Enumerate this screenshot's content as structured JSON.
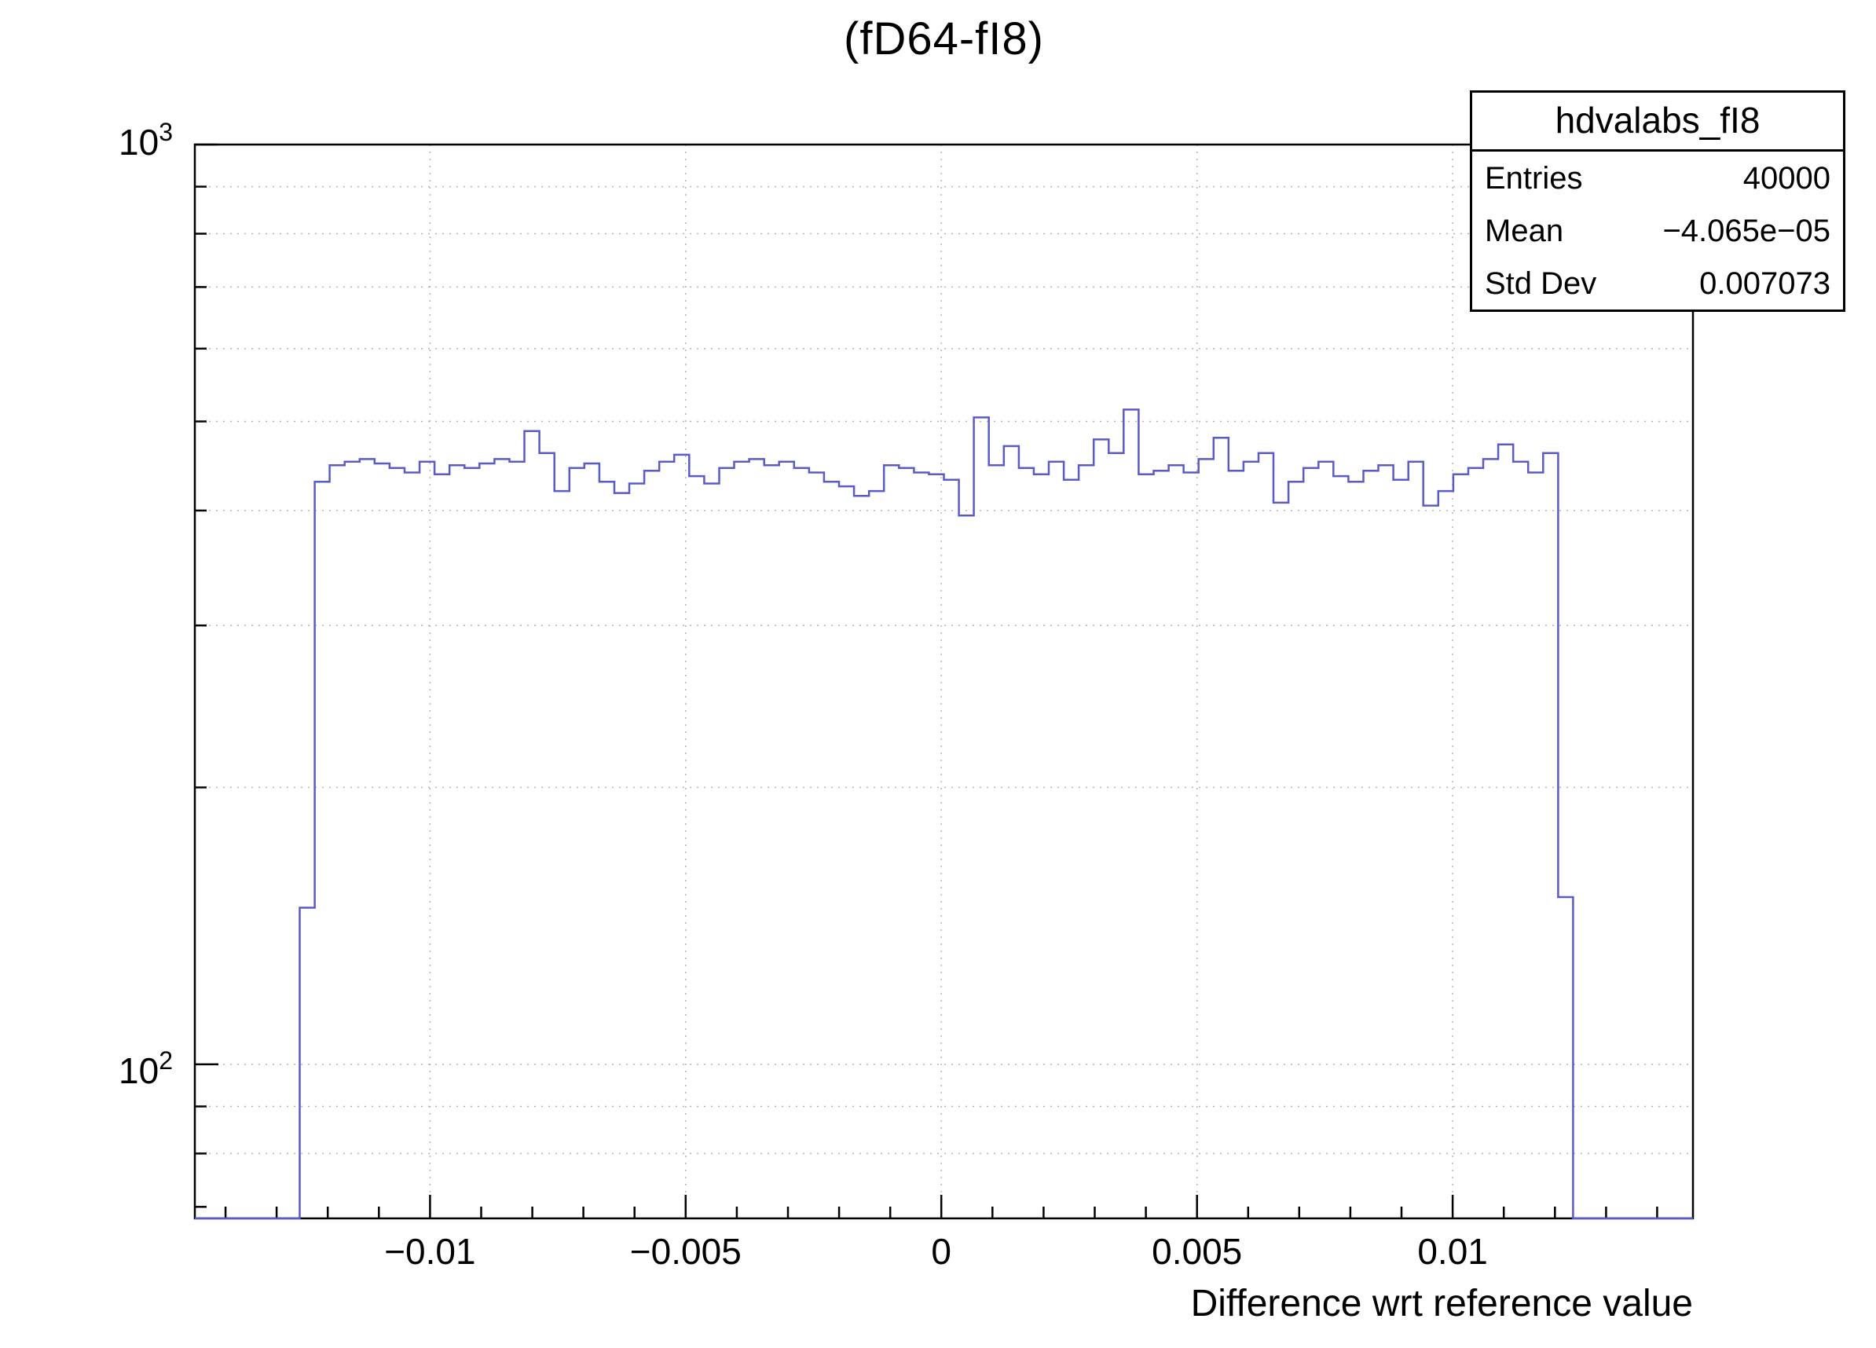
{
  "title": "(fD64-fI8)",
  "stats_box": {
    "title": "hdvalabs_fI8",
    "rows": [
      {
        "label": "Entries",
        "value": "40000"
      },
      {
        "label": "Mean",
        "value": "−4.065e−05"
      },
      {
        "label": "Std Dev",
        "value": "0.007073"
      }
    ]
  },
  "x_axis": {
    "label": "Difference wrt reference value",
    "tick_labels": [
      "−0.01",
      "−0.005",
      "0",
      "0.005",
      "0.01"
    ]
  },
  "y_axis": {
    "tick_labels": [
      {
        "base": "10",
        "exp": "2"
      },
      {
        "base": "10",
        "exp": "3"
      }
    ]
  },
  "chart_data": {
    "type": "bar",
    "subtype": "step-histogram",
    "name": "hdvalabs_fI8",
    "title": "(fD64-fI8)",
    "xlabel": "Difference wrt reference value",
    "ylabel": "",
    "entries": 40000,
    "mean": -4.065e-05,
    "std_dev": 0.007073,
    "y_scale": "log",
    "xlim": [
      -0.0146,
      0.0147
    ],
    "ylim_log": [
      68,
      1000
    ],
    "n_bins": 100,
    "x_major_ticks": [
      -0.01,
      -0.005,
      0,
      0.005,
      0.01
    ],
    "x_minor_step": 0.001,
    "y_grid_values": [
      80,
      90,
      100,
      200,
      300,
      400,
      500,
      600,
      700,
      800,
      900
    ],
    "grid": true,
    "line_color": "#5a5ac8",
    "frame_color": "#000000",
    "grid_color": "#b4b4b4",
    "values": [
      0,
      0,
      0,
      0,
      0,
      0,
      0,
      148,
      430,
      448,
      452,
      455,
      450,
      445,
      440,
      452,
      438,
      448,
      445,
      450,
      455,
      452,
      488,
      462,
      420,
      445,
      450,
      430,
      418,
      428,
      442,
      452,
      460,
      436,
      428,
      445,
      452,
      455,
      448,
      452,
      445,
      440,
      430,
      425,
      415,
      420,
      448,
      445,
      440,
      438,
      432,
      395,
      505,
      448,
      470,
      445,
      438,
      452,
      432,
      448,
      478,
      462,
      515,
      438,
      442,
      448,
      440,
      455,
      480,
      442,
      452,
      462,
      408,
      430,
      445,
      452,
      436,
      430,
      442,
      448,
      432,
      452,
      405,
      420,
      438,
      445,
      455,
      472,
      452,
      440,
      462,
      152,
      0,
      0,
      0,
      0,
      0,
      0,
      0,
      0
    ]
  }
}
